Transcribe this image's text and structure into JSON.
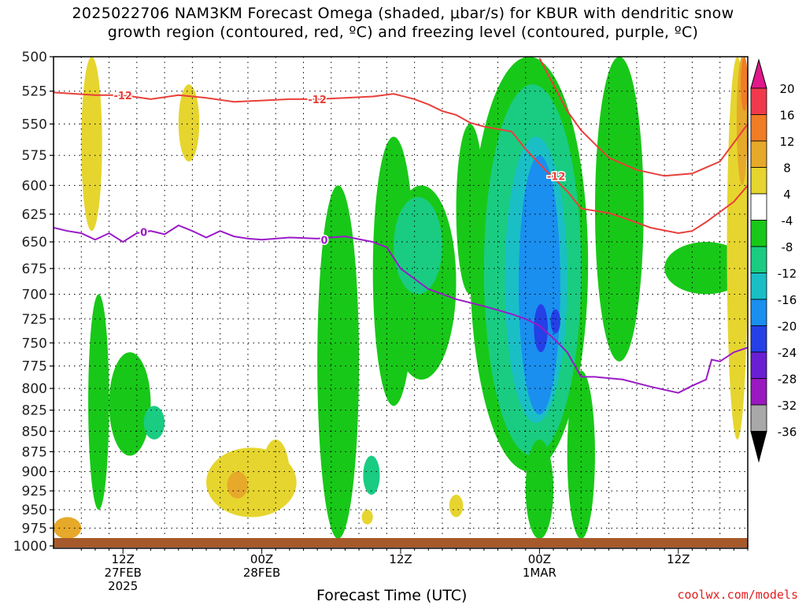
{
  "header": {
    "title_line1": "2025022706 NAM3KM Forecast Omega (shaded, μbar/s) for KBUR with dendritic snow",
    "title_line2": "growth region (contoured, red, ºC) and freezing level (contoured, purple, ºC)"
  },
  "footer": {
    "xlabel": "Forecast Time (UTC)",
    "credit": "coolwx.com/models"
  },
  "chart_data": {
    "type": "heatmap",
    "title": "2025022706 NAM3KM Forecast Omega (shaded, μbar/s) for KBUR with dendritic snow growth region (contoured, red, ºC) and freezing level (contoured, purple, ºC)",
    "xlabel": "Forecast Time (UTC)",
    "ylabel": "",
    "y_axis": {
      "scale": "pressure",
      "ticks": [
        500,
        525,
        550,
        575,
        600,
        625,
        650,
        675,
        700,
        725,
        750,
        775,
        800,
        825,
        850,
        875,
        900,
        925,
        950,
        975,
        1000
      ],
      "range": [
        1000,
        500
      ]
    },
    "x_axis": {
      "range_hours": [
        7,
        57
      ],
      "ticks": [
        {
          "hour": 12,
          "lines": [
            "12Z",
            "27FEB",
            "2025"
          ]
        },
        {
          "hour": 22,
          "lines": [
            "00Z",
            "28FEB"
          ]
        },
        {
          "hour": 32,
          "lines": [
            "12Z"
          ]
        },
        {
          "hour": 42,
          "lines": [
            "00Z",
            "1MAR"
          ]
        },
        {
          "hour": 52,
          "lines": [
            "12Z"
          ]
        }
      ]
    },
    "grid": true,
    "colorbar": {
      "labels": [
        "20",
        "16",
        "12",
        "8",
        "4",
        "-4",
        "-8",
        "-12",
        "-16",
        "-20",
        "-24",
        "-28",
        "-32",
        "-36"
      ],
      "bins": [
        {
          "range": [
            16,
            20
          ],
          "color": "#f03a4c"
        },
        {
          "range": [
            12,
            16
          ],
          "color": "#f07c26"
        },
        {
          "range": [
            8,
            12
          ],
          "color": "#e6a92a"
        },
        {
          "range": [
            4,
            8
          ],
          "color": "#e6d52e"
        },
        {
          "range": [
            -4,
            4
          ],
          "color": "#ffffff"
        },
        {
          "range": [
            -8,
            -4
          ],
          "color": "#18c818"
        },
        {
          "range": [
            -12,
            -8
          ],
          "color": "#19cc82"
        },
        {
          "range": [
            -16,
            -12
          ],
          "color": "#1abfc6"
        },
        {
          "range": [
            -20,
            -16
          ],
          "color": "#1a8fef"
        },
        {
          "range": [
            -24,
            -20
          ],
          "color": "#2440e6"
        },
        {
          "range": [
            -28,
            -24
          ],
          "color": "#6a1ed2"
        },
        {
          "range": [
            -32,
            -28
          ],
          "color": "#9a18c0"
        },
        {
          "range": [
            -36,
            -32
          ],
          "color": "#a8a8a8"
        }
      ],
      "over_color": "#e0188a",
      "under_color": "#000000"
    },
    "contours": [
      {
        "label": "-12",
        "color": "#e8403a",
        "segments": [
          [
            [
              7,
              526
            ],
            [
              10,
              528
            ],
            [
              12,
              528
            ],
            [
              14,
              531
            ],
            [
              16,
              528
            ],
            [
              18,
              530
            ],
            [
              20,
              533
            ],
            [
              22,
              532
            ],
            [
              24,
              531
            ],
            [
              26,
              531
            ],
            [
              28,
              530
            ],
            [
              30,
              529
            ],
            [
              31.5,
              527
            ],
            [
              33,
              531
            ],
            [
              34,
              535
            ],
            [
              35,
              540
            ],
            [
              36,
              543
            ],
            [
              37,
              549
            ],
            [
              38,
              552
            ],
            [
              40,
              556
            ],
            [
              41,
              570
            ],
            [
              42.5,
              588
            ],
            [
              44,
              605
            ],
            [
              45,
              620
            ],
            [
              47,
              624
            ],
            [
              48,
              628
            ],
            [
              50,
              637
            ],
            [
              52,
              642
            ],
            [
              53,
              640
            ],
            [
              54,
              632
            ],
            [
              56,
              614
            ],
            [
              57,
              600
            ]
          ],
          [
            [
              42,
              501
            ],
            [
              43,
              520
            ],
            [
              44,
              540
            ],
            [
              45,
              555
            ],
            [
              46,
              566
            ],
            [
              47,
              577
            ],
            [
              49,
              587
            ],
            [
              51,
              592
            ],
            [
              53,
              590
            ],
            [
              55,
              580
            ],
            [
              57,
              550
            ]
          ]
        ]
      },
      {
        "label": "0",
        "color": "#9a1ac8",
        "segments": [
          [
            [
              7,
              637
            ],
            [
              8,
              640
            ],
            [
              9,
              642
            ],
            [
              10,
              648
            ],
            [
              11,
              642
            ],
            [
              12,
              650
            ],
            [
              13,
              642
            ],
            [
              14,
              640
            ],
            [
              15,
              643
            ],
            [
              16,
              635
            ],
            [
              17,
              640
            ],
            [
              18,
              646
            ],
            [
              19,
              640
            ],
            [
              20,
              645
            ],
            [
              21,
              647
            ],
            [
              22,
              648
            ],
            [
              24,
              646
            ],
            [
              26,
              647
            ],
            [
              28,
              645
            ],
            [
              30,
              650
            ],
            [
              31,
              655
            ],
            [
              32,
              675
            ],
            [
              34,
              695
            ],
            [
              36,
              705
            ],
            [
              38,
              712
            ],
            [
              40,
              720
            ],
            [
              41,
              725
            ],
            [
              42,
              732
            ],
            [
              43,
              745
            ],
            [
              44,
              760
            ],
            [
              45,
              787
            ],
            [
              46,
              787
            ],
            [
              48,
              790
            ],
            [
              50,
              798
            ],
            [
              52,
              805
            ],
            [
              53,
              797
            ],
            [
              54,
              790
            ],
            [
              54.4,
              768
            ],
            [
              55,
              770
            ],
            [
              56,
              760
            ],
            [
              57,
              755
            ]
          ]
        ]
      }
    ],
    "omega_features": [
      {
        "value_range": [
          -16,
          -20
        ],
        "hour_range": [
          40.5,
          43.5
        ],
        "pressure_range": [
          575,
          840
        ],
        "shading": "blue core"
      },
      {
        "value_range": [
          -20,
          -24
        ],
        "hour_range": [
          41.5,
          42.8
        ],
        "pressure_range": [
          710,
          760
        ],
        "shading": "dark blue max"
      },
      {
        "value_range": [
          -4,
          -12
        ],
        "hour_range": [
          37,
          45
        ],
        "pressure_range": [
          500,
          900
        ],
        "shading": "green/teal ascent"
      },
      {
        "value_range": [
          4,
          12
        ],
        "hour_range": [
          18,
          25
        ],
        "pressure_range": [
          870,
          960
        ],
        "shading": "yellow/orange descent"
      },
      {
        "value_range": [
          4,
          16
        ],
        "hour_range": [
          55.5,
          57
        ],
        "pressure_range": [
          500,
          860
        ],
        "shading": "yellow/orange descent"
      }
    ]
  }
}
